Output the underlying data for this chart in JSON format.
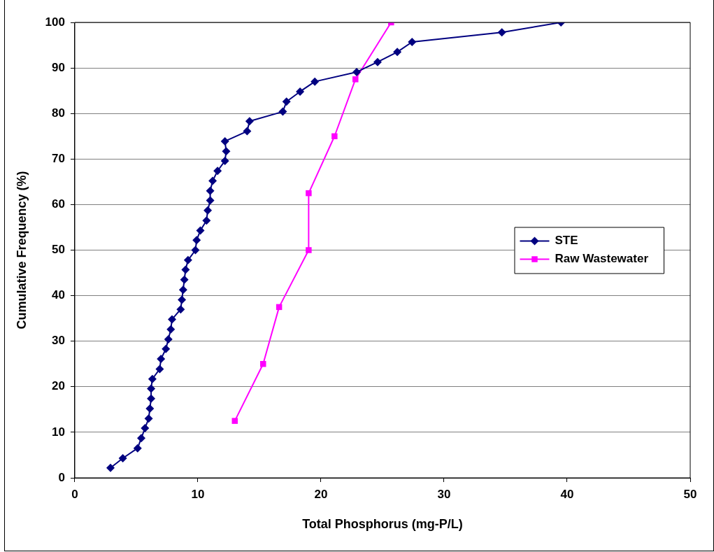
{
  "chart_data": {
    "type": "line",
    "xlabel": "Total Phosphorus (mg-P/L)",
    "ylabel": "Cumulative Frequency (%)",
    "xlim": [
      0,
      50
    ],
    "xticks": [
      0,
      10,
      20,
      30,
      40,
      50
    ],
    "ylim": [
      0,
      100
    ],
    "yticks": [
      0,
      10,
      20,
      30,
      40,
      50,
      60,
      70,
      80,
      90,
      100
    ],
    "grid": "y",
    "legend": "right",
    "series": [
      {
        "name": "STE",
        "color": "#000080",
        "marker": "diamond",
        "x": [
          2.9,
          3.9,
          5.1,
          5.4,
          5.7,
          6.0,
          6.1,
          6.2,
          6.2,
          6.3,
          6.9,
          7.0,
          7.4,
          7.6,
          7.8,
          7.9,
          8.6,
          8.7,
          8.8,
          8.9,
          9.0,
          9.2,
          9.8,
          9.9,
          10.2,
          10.7,
          10.8,
          11.0,
          11.0,
          11.2,
          11.6,
          12.2,
          12.3,
          12.2,
          14.0,
          14.2,
          16.9,
          17.2,
          18.3,
          19.5,
          22.9,
          24.6,
          26.2,
          27.4,
          34.7,
          39.5
        ],
        "values": [
          2.2,
          4.3,
          6.5,
          8.7,
          10.9,
          13.0,
          15.2,
          17.4,
          19.6,
          21.7,
          23.9,
          26.1,
          28.3,
          30.4,
          32.6,
          34.8,
          37.0,
          39.1,
          41.3,
          43.5,
          45.7,
          47.8,
          50.0,
          52.2,
          54.3,
          56.5,
          58.7,
          60.9,
          63.0,
          65.2,
          67.4,
          69.6,
          71.7,
          73.9,
          76.1,
          78.3,
          80.4,
          82.6,
          84.8,
          87.0,
          89.1,
          91.3,
          93.5,
          95.7,
          97.8,
          100
        ]
      },
      {
        "name": "Raw Wastewater",
        "color": "#ff00ff",
        "marker": "square",
        "x": [
          13.0,
          15.3,
          16.6,
          19.0,
          19.0,
          21.1,
          22.8,
          25.7
        ],
        "values": [
          12.5,
          25,
          37.5,
          50,
          62.5,
          75,
          87.5,
          100
        ]
      }
    ]
  }
}
